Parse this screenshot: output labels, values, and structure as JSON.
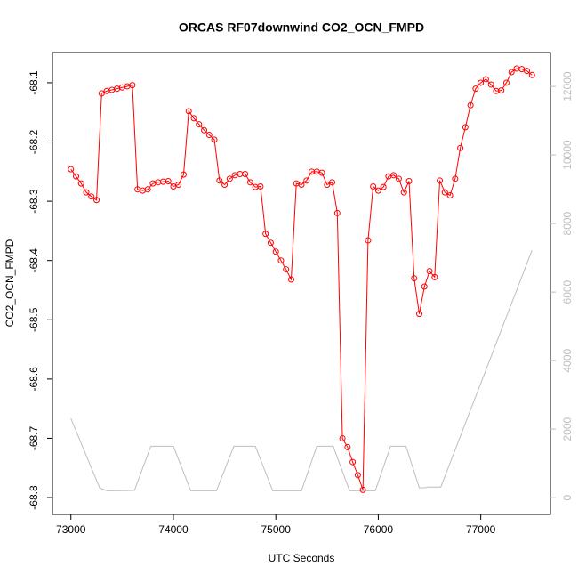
{
  "chart_data": {
    "type": "line",
    "title": "ORCAS RF07downwind CO2_OCN_FMPD",
    "xlabel": "UTC Seconds",
    "ylabel": "CO2_OCN_FMPD",
    "xlim": [
      72820,
      77680
    ],
    "xticks": [
      73000,
      74000,
      75000,
      76000,
      77000
    ],
    "ylim": [
      -68.8285,
      -68.049
    ],
    "yticks": [
      -68.8,
      -68.7,
      -68.6,
      -68.5,
      -68.4,
      -68.3,
      -68.2,
      -68.1
    ],
    "y2lim": [
      -490,
      12990
    ],
    "y2ticks": [
      0,
      2000,
      4000,
      6000,
      8000,
      10000,
      12000
    ],
    "series": [
      {
        "color": "#ff0000",
        "marker": "circle",
        "x": [
          73000,
          73050,
          73100,
          73150,
          73200,
          73250,
          73300,
          73350,
          73400,
          73450,
          73500,
          73550,
          73600,
          73650,
          73700,
          73750,
          73800,
          73850,
          73900,
          73950,
          74000,
          74050,
          74100,
          74150,
          74200,
          74250,
          74300,
          74350,
          74400,
          74450,
          74500,
          74550,
          74600,
          74650,
          74700,
          74750,
          74800,
          74850,
          74900,
          74950,
          75000,
          75050,
          75100,
          75150,
          75200,
          75250,
          75300,
          75350,
          75400,
          75450,
          75500,
          75550,
          75600,
          75650,
          75700,
          75750,
          75800,
          75850,
          75900,
          75950,
          76000,
          76050,
          76100,
          76150,
          76200,
          76250,
          76300,
          76350,
          76400,
          76450,
          76500,
          76550,
          76600,
          76650,
          76700,
          76750,
          76800,
          76850,
          76900,
          76950,
          77000,
          77050,
          77100,
          77150,
          77200,
          77250,
          77300,
          77350,
          77400,
          77450,
          77500
        ],
        "values": [
          -68.246,
          -68.258,
          -68.27,
          -68.285,
          -68.292,
          -68.298,
          -68.118,
          -68.114,
          -68.112,
          -68.11,
          -68.108,
          -68.106,
          -68.104,
          -68.28,
          -68.282,
          -68.28,
          -68.27,
          -68.268,
          -68.267,
          -68.266,
          -68.275,
          -68.272,
          -68.255,
          -68.148,
          -68.16,
          -68.17,
          -68.18,
          -68.188,
          -68.196,
          -68.265,
          -68.272,
          -68.262,
          -68.256,
          -68.254,
          -68.254,
          -68.268,
          -68.276,
          -68.275,
          -68.355,
          -68.37,
          -68.385,
          -68.4,
          -68.415,
          -68.432,
          -68.27,
          -68.272,
          -68.265,
          -68.25,
          -68.25,
          -68.252,
          -68.272,
          -68.268,
          -68.32,
          -68.7,
          -68.715,
          -68.74,
          -68.762,
          -68.787,
          -68.366,
          -68.275,
          -68.282,
          -68.276,
          -68.258,
          -68.256,
          -68.262,
          -68.285,
          -68.266,
          -68.43,
          -68.49,
          -68.444,
          -68.418,
          -68.428,
          -68.265,
          -68.285,
          -68.29,
          -68.262,
          -68.21,
          -68.175,
          -68.138,
          -68.11,
          -68.1,
          -68.094,
          -68.103,
          -68.114,
          -68.113,
          -68.1,
          -68.082,
          -68.076,
          -68.077,
          -68.08,
          -68.087
        ]
      },
      {
        "color": "#bebebe",
        "axis": "y2",
        "x": [
          73000,
          73280,
          73350,
          73620,
          73780,
          74000,
          74170,
          74420,
          74590,
          74800,
          74970,
          75250,
          75400,
          75560,
          75720,
          75970,
          76120,
          76270,
          76400,
          76460,
          76480,
          76610,
          77500
        ],
        "values": [
          2310,
          290,
          200,
          210,
          1500,
          1500,
          200,
          200,
          1500,
          1500,
          200,
          200,
          1500,
          1500,
          200,
          200,
          1500,
          1500,
          290,
          290,
          310,
          310,
          7220
        ]
      }
    ]
  }
}
